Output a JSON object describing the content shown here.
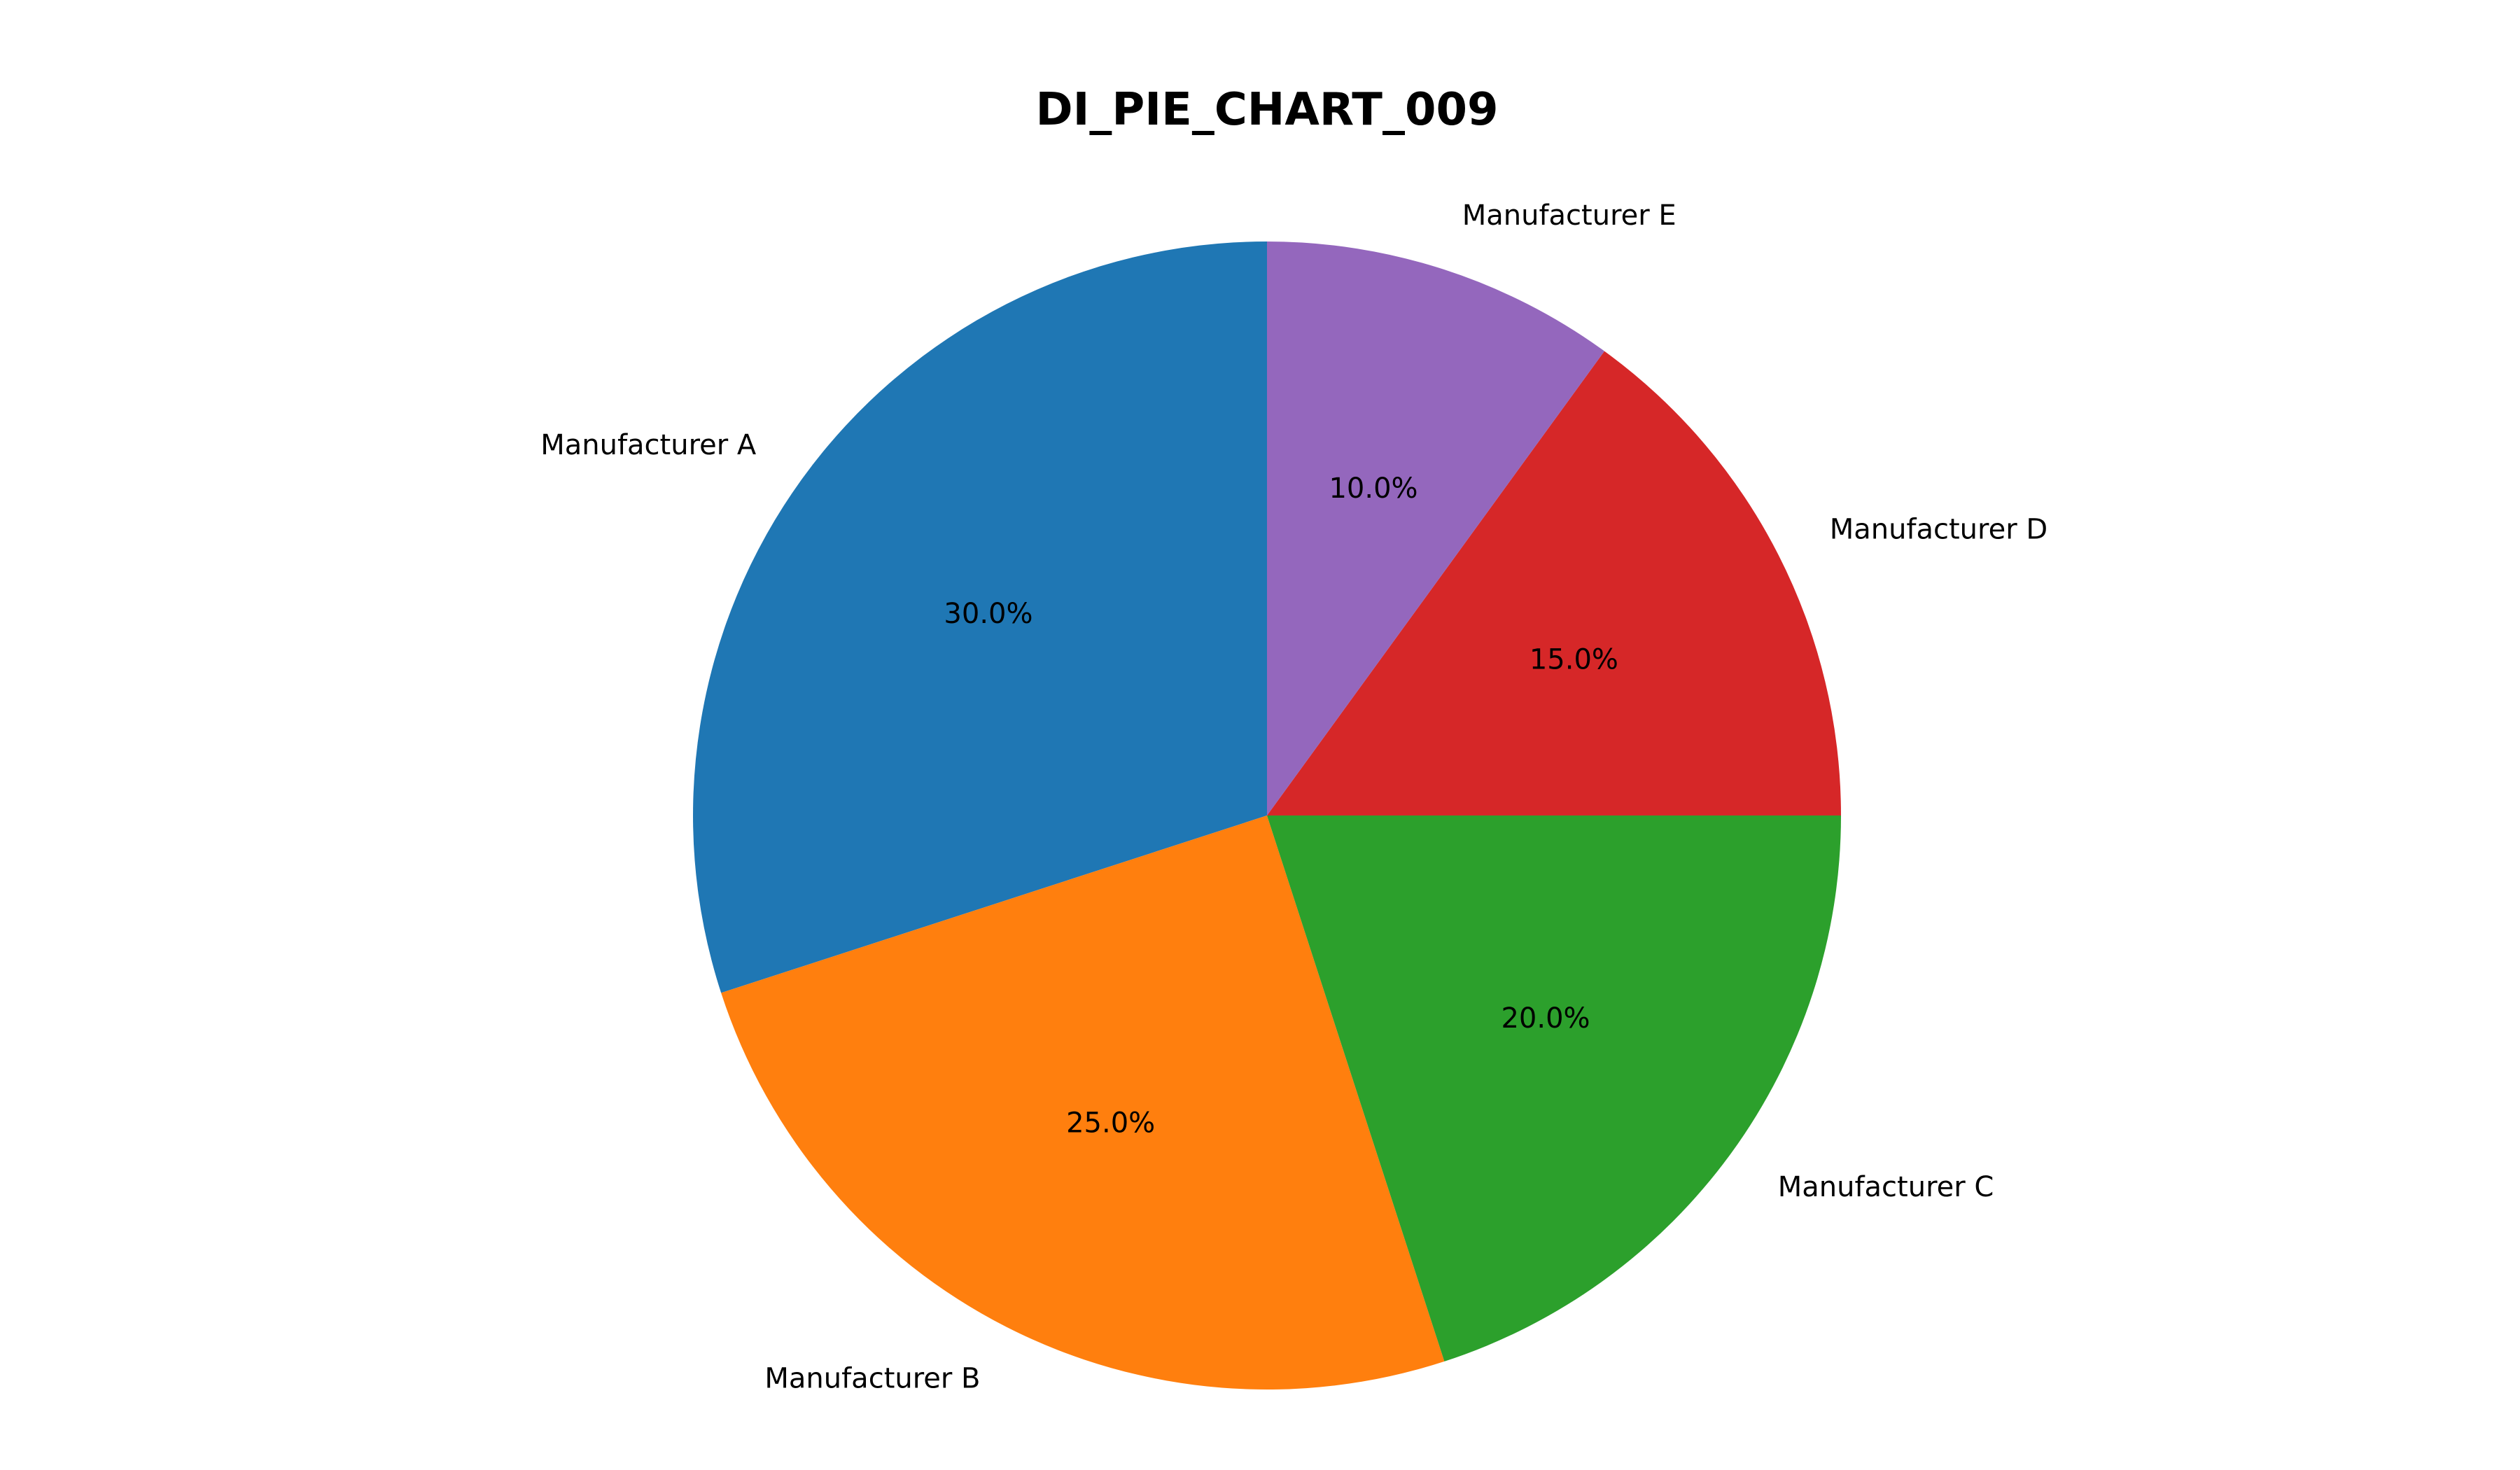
{
  "chart_data": {
    "type": "pie",
    "title": "DI_PIE_CHART_009",
    "categories": [
      "Manufacturer A",
      "Manufacturer B",
      "Manufacturer C",
      "Manufacturer D",
      "Manufacturer E"
    ],
    "values": [
      30.0,
      25.0,
      20.0,
      15.0,
      10.0
    ],
    "value_labels": [
      "30.0%",
      "25.0%",
      "20.0%",
      "15.0%",
      "10.0%"
    ],
    "colors": [
      "#1f77b4",
      "#ff7f0e",
      "#2ca02c",
      "#d62728",
      "#9467bd"
    ],
    "start_angle_deg": 90,
    "direction": "counterclockwise",
    "legend": "none"
  }
}
